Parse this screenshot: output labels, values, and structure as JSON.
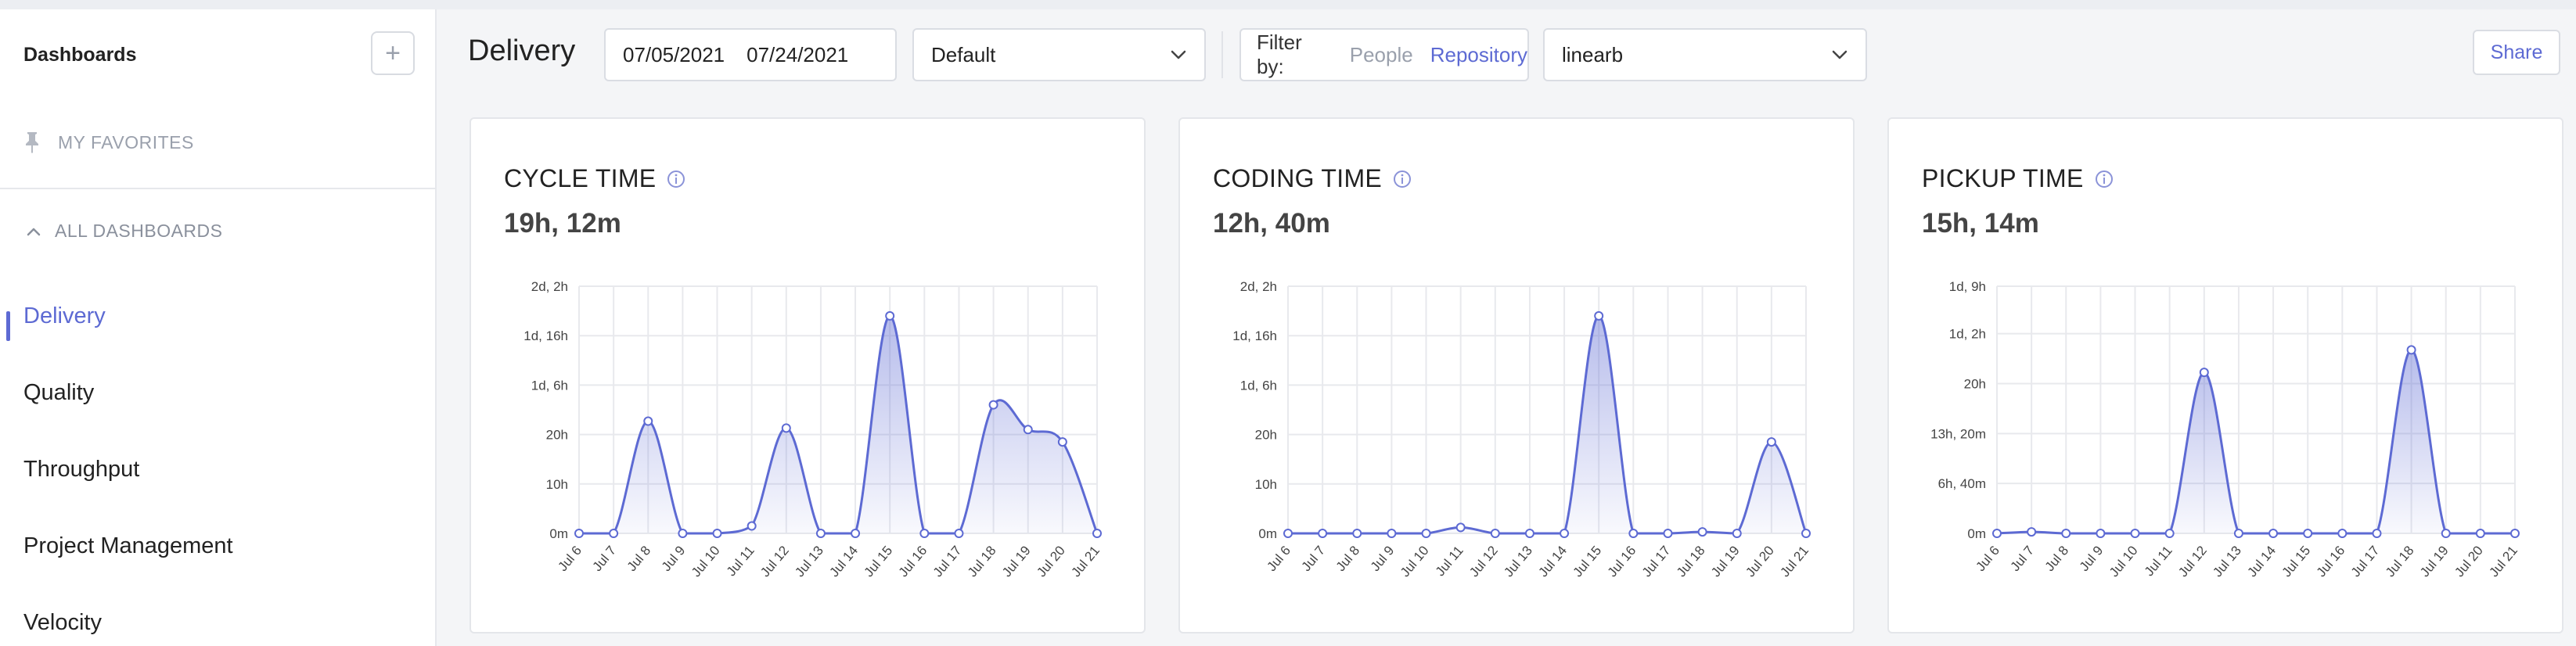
{
  "sidebar": {
    "heading": "Dashboards",
    "add_label": "+",
    "favorites_label": "MY FAVORITES",
    "all_dashboards_label": "ALL DASHBOARDS",
    "items": [
      {
        "label": "Delivery",
        "active": true
      },
      {
        "label": "Quality",
        "active": false
      },
      {
        "label": "Throughput",
        "active": false
      },
      {
        "label": "Project Management",
        "active": false
      },
      {
        "label": "Velocity",
        "active": false
      }
    ]
  },
  "header": {
    "title": "Delivery",
    "date_start": "07/05/2021",
    "date_end": "07/24/2021",
    "view_select": "Default",
    "filter_label": "Filter by:",
    "filter_options": [
      "People",
      "Repository"
    ],
    "filter_active": "Repository",
    "repository_select": "linearb",
    "share_label": "Share"
  },
  "colors": {
    "accent": "#5d6ad3",
    "line": "#5d6ad3",
    "grid": "#e8e9ed",
    "muted": "#9aa0ac"
  },
  "icons": {
    "add": "plus-icon",
    "favorites": "pin-icon",
    "collapse": "chevron-up-icon",
    "dropdown": "chevron-down-icon",
    "info": "info-circle-icon"
  },
  "cards": [
    {
      "title": "CYCLE TIME",
      "value": "19h, 12m"
    },
    {
      "title": "CODING TIME",
      "value": "12h, 40m"
    },
    {
      "title": "PICKUP TIME",
      "value": "15h, 14m"
    }
  ],
  "chart_data": [
    {
      "type": "area",
      "title": "CYCLE TIME",
      "x": [
        "Jul 6",
        "Jul 7",
        "Jul 8",
        "Jul 9",
        "Jul 10",
        "Jul 11",
        "Jul 12",
        "Jul 13",
        "Jul 14",
        "Jul 15",
        "Jul 16",
        "Jul 17",
        "Jul 18",
        "Jul 19",
        "Jul 20",
        "Jul 21"
      ],
      "y_unit": "hours",
      "values": [
        0,
        0,
        22.7,
        0,
        0,
        1.5,
        21.3,
        0,
        0,
        44,
        0,
        0,
        26,
        21,
        18.5,
        0
      ],
      "y_ticks": [
        0,
        10,
        20,
        30,
        40,
        50
      ],
      "y_tick_labels": [
        "0m",
        "10h",
        "20h",
        "1d, 6h",
        "1d, 16h",
        "2d, 2h"
      ],
      "ylim": [
        0,
        50
      ],
      "grid": true
    },
    {
      "type": "area",
      "title": "CODING TIME",
      "x": [
        "Jul 6",
        "Jul 7",
        "Jul 8",
        "Jul 9",
        "Jul 10",
        "Jul 11",
        "Jul 12",
        "Jul 13",
        "Jul 14",
        "Jul 15",
        "Jul 16",
        "Jul 17",
        "Jul 18",
        "Jul 19",
        "Jul 20",
        "Jul 21"
      ],
      "y_unit": "hours",
      "values": [
        0,
        0,
        0,
        0,
        0,
        1.2,
        0,
        0,
        0,
        44,
        0,
        0,
        0.3,
        0,
        18.5,
        0
      ],
      "y_ticks": [
        0,
        10,
        20,
        30,
        40,
        50
      ],
      "y_tick_labels": [
        "0m",
        "10h",
        "20h",
        "1d, 6h",
        "1d, 16h",
        "2d, 2h"
      ],
      "ylim": [
        0,
        50
      ],
      "grid": true
    },
    {
      "type": "area",
      "title": "PICKUP TIME",
      "x": [
        "Jul 6",
        "Jul 7",
        "Jul 8",
        "Jul 9",
        "Jul 10",
        "Jul 11",
        "Jul 12",
        "Jul 13",
        "Jul 14",
        "Jul 15",
        "Jul 16",
        "Jul 17",
        "Jul 18",
        "Jul 19",
        "Jul 20",
        "Jul 21"
      ],
      "y_unit": "hours",
      "values": [
        0,
        0.2,
        0,
        0,
        0,
        0,
        21.5,
        0,
        0,
        0,
        0,
        0,
        24.5,
        0,
        0,
        0
      ],
      "y_ticks": [
        0,
        6.667,
        13.333,
        20,
        26.667,
        33
      ],
      "y_tick_labels": [
        "0m",
        "6h, 40m",
        "13h, 20m",
        "20h",
        "1d, 2h",
        "1d, 9h"
      ],
      "ylim": [
        0,
        33
      ],
      "grid": true
    }
  ]
}
